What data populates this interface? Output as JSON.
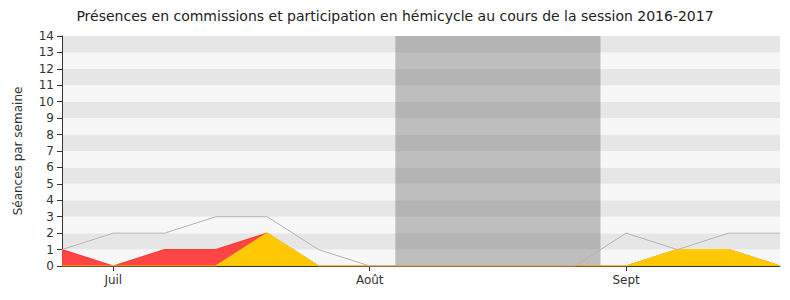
{
  "chart_data": {
    "type": "line",
    "title": "Présences en commissions et participation en hémicycle au cours de la session 2016-2017",
    "y_label": "Séances par semaine",
    "x": [
      0,
      1,
      2,
      3,
      4,
      5,
      6,
      7,
      8,
      9,
      10,
      11,
      12,
      13,
      14
    ],
    "xlim": [
      0,
      14
    ],
    "xticks": [
      {
        "value": 1,
        "label": "Juil"
      },
      {
        "value": 6,
        "label": "Août"
      },
      {
        "value": 11,
        "label": "Sept"
      }
    ],
    "ylim": [
      0,
      14
    ],
    "yticks": [
      0,
      1,
      2,
      3,
      4,
      5,
      6,
      7,
      8,
      9,
      10,
      11,
      12,
      13,
      14
    ],
    "grid": true,
    "tick_labels": true,
    "shaded_ranges": [
      [
        6.5,
        10.5
      ]
    ],
    "series": [
      {
        "type": "area",
        "color": "#ff3b3b",
        "values": [
          1,
          0,
          1,
          1,
          2,
          0,
          0,
          0,
          0,
          0,
          0,
          0,
          1,
          1,
          0
        ]
      },
      {
        "type": "area",
        "color": "#ffd000",
        "values": [
          0,
          0,
          0,
          0,
          2,
          0,
          0,
          0,
          0,
          0,
          0,
          0,
          1,
          1,
          0
        ]
      },
      {
        "type": "line",
        "color": "#b4b4b4",
        "values": [
          1,
          2,
          2,
          3,
          3,
          1,
          0,
          0,
          0,
          0,
          0,
          2,
          1,
          2,
          2
        ]
      }
    ]
  }
}
